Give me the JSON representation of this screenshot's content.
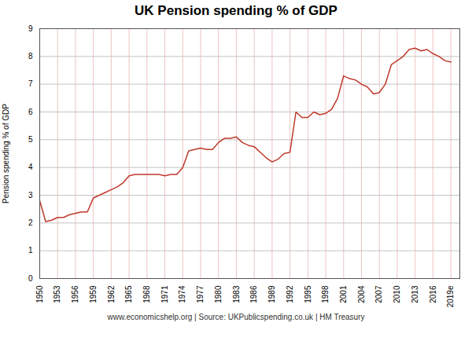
{
  "chart_data": {
    "type": "line",
    "title": "UK Pension spending % of GDP",
    "ylabel": "Pension spending % of GDP",
    "caption": "www.economicshelp.org | Source: UKPublicspending.co.uk | HM Treasury",
    "color": "#c0392b",
    "x": [
      1950,
      1951,
      1952,
      1953,
      1954,
      1955,
      1956,
      1957,
      1958,
      1959,
      1960,
      1961,
      1962,
      1963,
      1964,
      1965,
      1966,
      1967,
      1968,
      1969,
      1970,
      1971,
      1972,
      1973,
      1974,
      1975,
      1976,
      1977,
      1978,
      1979,
      1980,
      1981,
      1982,
      1983,
      1984,
      1985,
      1986,
      1987,
      1988,
      1989,
      1990,
      1991,
      1992,
      1993,
      1994,
      1995,
      1996,
      1997,
      1998,
      1999,
      2000,
      2001,
      2002,
      2003,
      2004,
      2005,
      2006,
      2007,
      2008,
      2009,
      2010,
      2011,
      2012,
      2013,
      2014,
      2015,
      2016,
      2017,
      2018,
      2019
    ],
    "values": [
      2.8,
      2.05,
      2.1,
      2.2,
      2.2,
      2.3,
      2.35,
      2.4,
      2.4,
      2.9,
      3.0,
      3.1,
      3.2,
      3.3,
      3.45,
      3.7,
      3.75,
      3.75,
      3.75,
      3.75,
      3.75,
      3.7,
      3.75,
      3.75,
      4.0,
      4.6,
      4.65,
      4.7,
      4.65,
      4.65,
      4.9,
      5.05,
      5.05,
      5.1,
      4.9,
      4.8,
      4.75,
      4.55,
      4.35,
      4.2,
      4.3,
      4.5,
      4.55,
      6.0,
      5.8,
      5.8,
      6.0,
      5.9,
      5.95,
      6.1,
      6.5,
      7.3,
      7.2,
      7.15,
      7.0,
      6.9,
      6.65,
      6.7,
      7.0,
      7.7,
      7.85,
      8.0,
      8.25,
      8.3,
      8.2,
      8.25,
      8.1,
      8.0,
      7.85,
      7.8
    ],
    "xlim": [
      1950,
      2020.5
    ],
    "xticks": [
      1950,
      1953,
      1956,
      1959,
      1962,
      1965,
      1968,
      1971,
      1974,
      1977,
      1980,
      1983,
      1986,
      1989,
      1992,
      1995,
      1998,
      2001,
      2004,
      2007,
      2010,
      2013,
      2016,
      {
        "value": 2019,
        "label": "2019e"
      }
    ],
    "ylim": [
      0,
      9
    ],
    "yticks": [
      0,
      1,
      2,
      3,
      4,
      5,
      6,
      7,
      8,
      9
    ],
    "grid": true
  }
}
